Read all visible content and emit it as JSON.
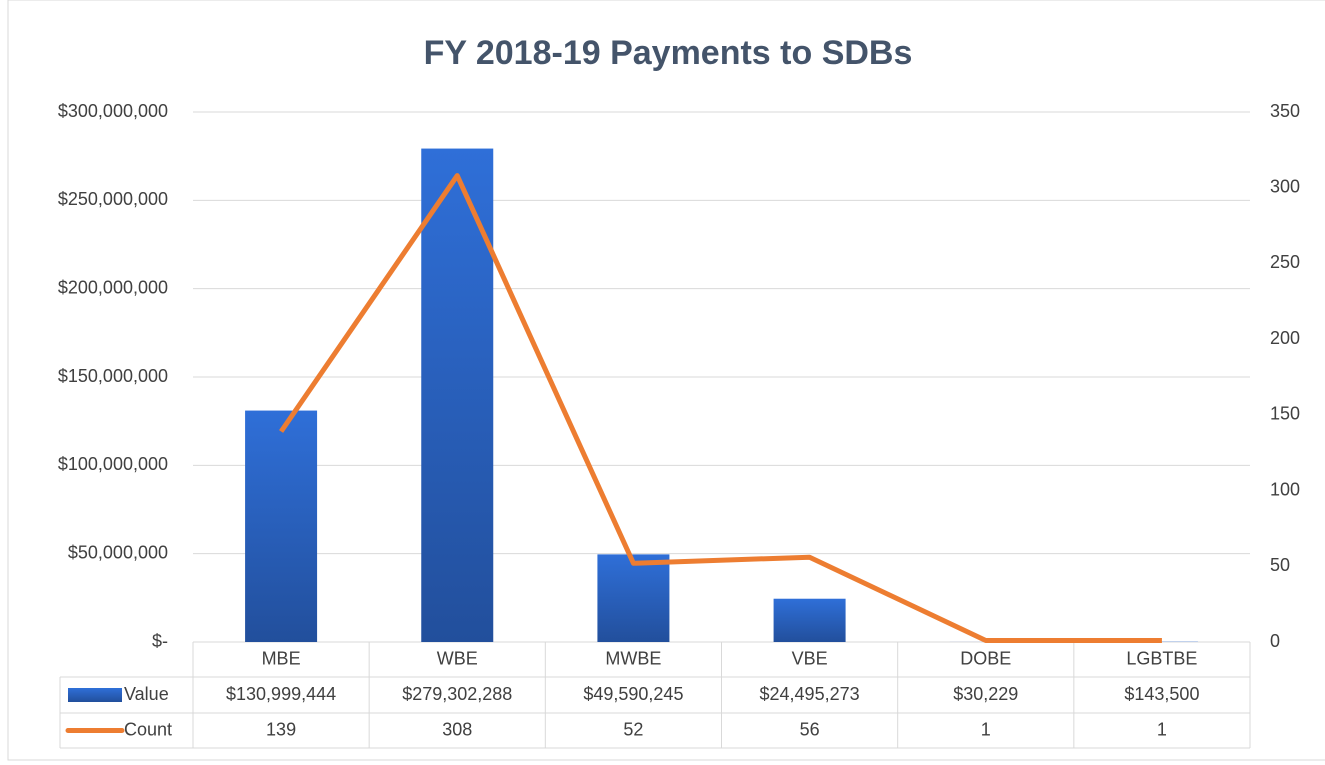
{
  "chart_data": {
    "type": "bar-line",
    "title": "FY 2018-19 Payments to SDBs",
    "categories": [
      "MBE",
      "WBE",
      "MWBE",
      "VBE",
      "DOBE",
      "LGBTBE"
    ],
    "series": [
      {
        "name": "Value",
        "type": "bar",
        "color": "#2a62c4",
        "axis": "y",
        "values": [
          130999444,
          279302288,
          49590245,
          24495273,
          30229,
          143500
        ],
        "value_labels": [
          "$130,999,444",
          "$279,302,288",
          "$49,590,245",
          "$24,495,273",
          "$30,229",
          "$143,500"
        ]
      },
      {
        "name": "Count",
        "type": "line",
        "color": "#ed7d31",
        "axis": "y2",
        "values": [
          139,
          308,
          52,
          56,
          1,
          1
        ]
      }
    ],
    "ylim": [
      0,
      300000000
    ],
    "yticks": [
      {
        "value": 0,
        "label": "$-"
      },
      {
        "value": 50000000,
        "label": "$50,000,000"
      },
      {
        "value": 100000000,
        "label": "$100,000,000"
      },
      {
        "value": 150000000,
        "label": "$150,000,000"
      },
      {
        "value": 200000000,
        "label": "$200,000,000"
      },
      {
        "value": 250000000,
        "label": "$250,000,000"
      },
      {
        "value": 300000000,
        "label": "$300,000,000"
      }
    ],
    "y2lim": [
      0,
      350
    ],
    "y2ticks": [
      0,
      50,
      100,
      150,
      200,
      250,
      300,
      350
    ],
    "grid": true
  }
}
